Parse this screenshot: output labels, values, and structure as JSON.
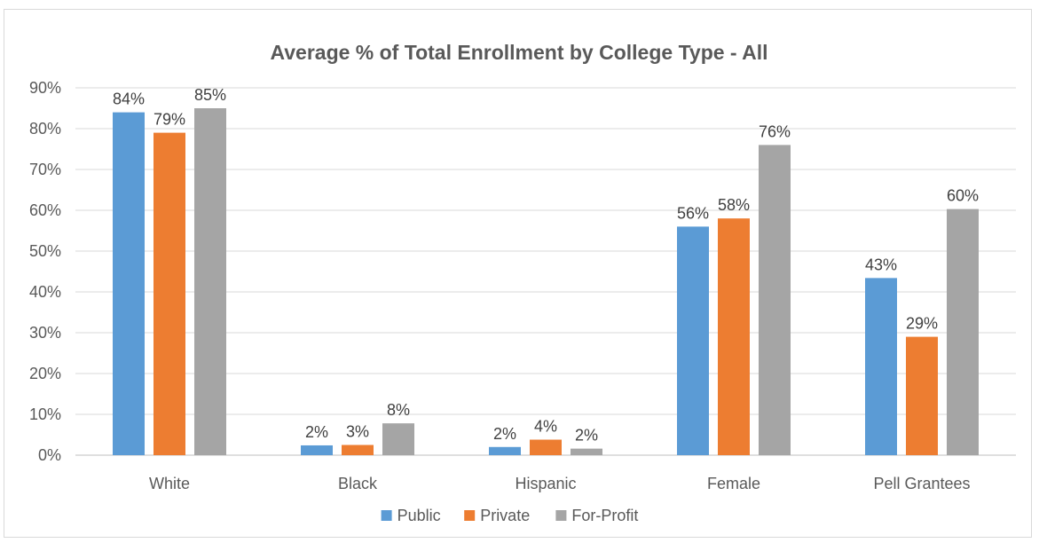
{
  "chart_data": {
    "type": "bar",
    "title": "Average % of Total Enrollment by College Type - All",
    "categories": [
      "White",
      "Black",
      "Hispanic",
      "Female",
      "Pell Grantees"
    ],
    "series": [
      {
        "name": "Public",
        "color": "#5b9bd5",
        "values": [
          84,
          2.4,
          2.0,
          56,
          43.4
        ],
        "labels": [
          "84%",
          "2%",
          "2%",
          "56%",
          "43%"
        ]
      },
      {
        "name": "Private",
        "color": "#ed7d31",
        "values": [
          79,
          2.5,
          3.8,
          58,
          29
        ],
        "labels": [
          "79%",
          "3%",
          "4%",
          "58%",
          "29%"
        ]
      },
      {
        "name": "For-Profit",
        "color": "#a5a5a5",
        "values": [
          85,
          7.8,
          1.6,
          76,
          60.3
        ],
        "labels": [
          "85%",
          "8%",
          "2%",
          "76%",
          "60%"
        ]
      }
    ],
    "ylim": [
      0,
      90
    ],
    "yticks": [
      "0%",
      "10%",
      "20%",
      "30%",
      "40%",
      "50%",
      "60%",
      "70%",
      "80%",
      "90%"
    ],
    "grid": true,
    "legend": "bottom"
  }
}
